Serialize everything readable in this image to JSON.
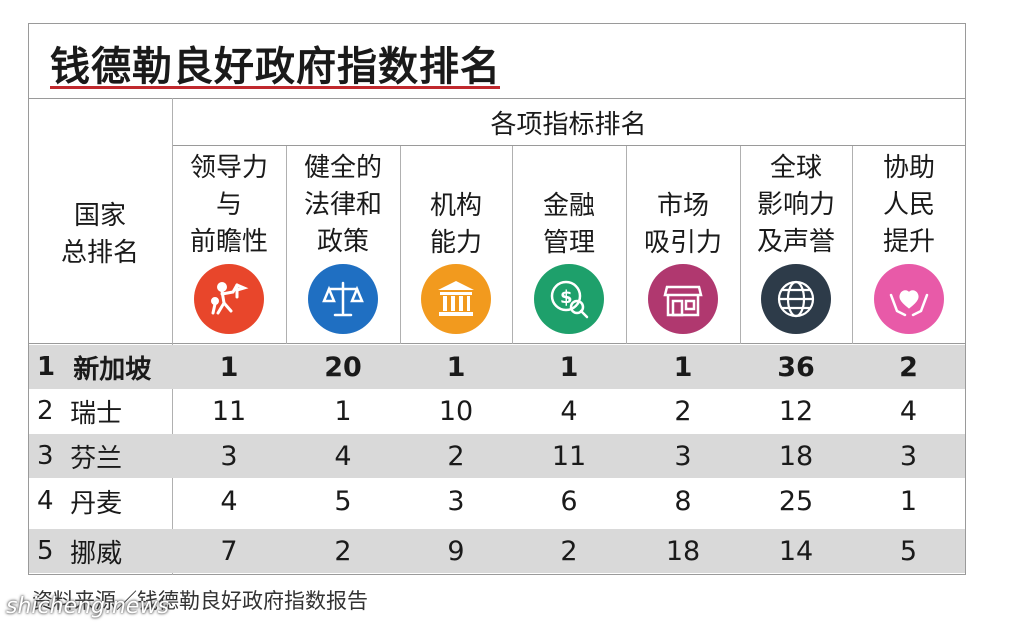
{
  "title": "钱德勒良好政府指数排名",
  "group_header": "各项指标排名",
  "country_header": [
    "国家",
    "总排名"
  ],
  "columns": [
    {
      "label_lines": [
        "领导力",
        "与",
        "前瞻性"
      ],
      "icon": "leadership-icon",
      "color": "#e8462b"
    },
    {
      "label_lines": [
        "健全的",
        "法律和",
        "政策"
      ],
      "icon": "scales-icon",
      "color": "#1f6fc2"
    },
    {
      "label_lines": [
        "机构",
        "能力"
      ],
      "icon": "institution-icon",
      "color": "#f29a1e"
    },
    {
      "label_lines": [
        "金融",
        "管理"
      ],
      "icon": "money-search-icon",
      "color": "#1ea06b"
    },
    {
      "label_lines": [
        "市场",
        "吸引力"
      ],
      "icon": "storefront-icon",
      "color": "#b0386f"
    },
    {
      "label_lines": [
        "全球",
        "影响力",
        "及声誉"
      ],
      "icon": "globe-icon",
      "color": "#2d3b49"
    },
    {
      "label_lines": [
        "协助",
        "人民",
        "提升"
      ],
      "icon": "helping-hands-icon",
      "color": "#e85aa8"
    }
  ],
  "rows": [
    {
      "rank": "1",
      "country": "新加坡",
      "values": [
        "1",
        "20",
        "1",
        "1",
        "1",
        "36",
        "2"
      ],
      "highlight": true
    },
    {
      "rank": "2",
      "country": "瑞士",
      "values": [
        "11",
        "1",
        "10",
        "4",
        "2",
        "12",
        "4"
      ],
      "highlight": false
    },
    {
      "rank": "3",
      "country": "芬兰",
      "values": [
        "3",
        "4",
        "2",
        "11",
        "3",
        "18",
        "3"
      ],
      "highlight": false
    },
    {
      "rank": "4",
      "country": "丹麦",
      "values": [
        "4",
        "5",
        "3",
        "6",
        "8",
        "25",
        "1"
      ],
      "highlight": false
    },
    {
      "rank": "5",
      "country": "挪威",
      "values": [
        "7",
        "2",
        "9",
        "2",
        "18",
        "14",
        "5"
      ],
      "highlight": false
    }
  ],
  "source": "资料来源／钱德勒良好政府指数报告",
  "watermark": "shicheng.news"
}
